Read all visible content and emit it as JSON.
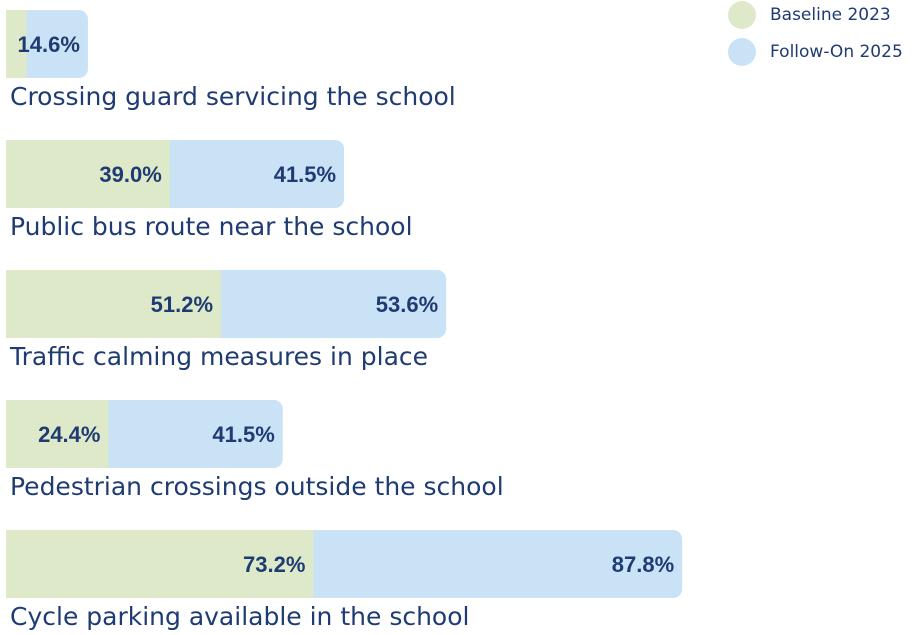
{
  "chart_data": {
    "type": "stacked-barh",
    "categories": [
      "Crossing guard servicing the school",
      "Public  bus route near the school",
      "Traffic calming measures in place",
      "Pedestrian crossings outside the school",
      "Cycle parking available in the school"
    ],
    "series": [
      {
        "name": "Baseline 2023",
        "color": "#dde9c8",
        "values": [
          4.9,
          39.0,
          51.2,
          24.4,
          73.2
        ],
        "value_labels": [
          null,
          "39.0%",
          "51.2%",
          "24.4%",
          "73.2%"
        ]
      },
      {
        "name": "Follow-On 2025",
        "color": "#c9e2f5",
        "values": [
          14.6,
          41.5,
          53.6,
          41.5,
          87.8
        ],
        "value_labels": [
          "14.6%",
          "41.5%",
          "53.6%",
          "41.5%",
          "87.8%"
        ]
      }
    ],
    "legend": "top-right"
  }
}
